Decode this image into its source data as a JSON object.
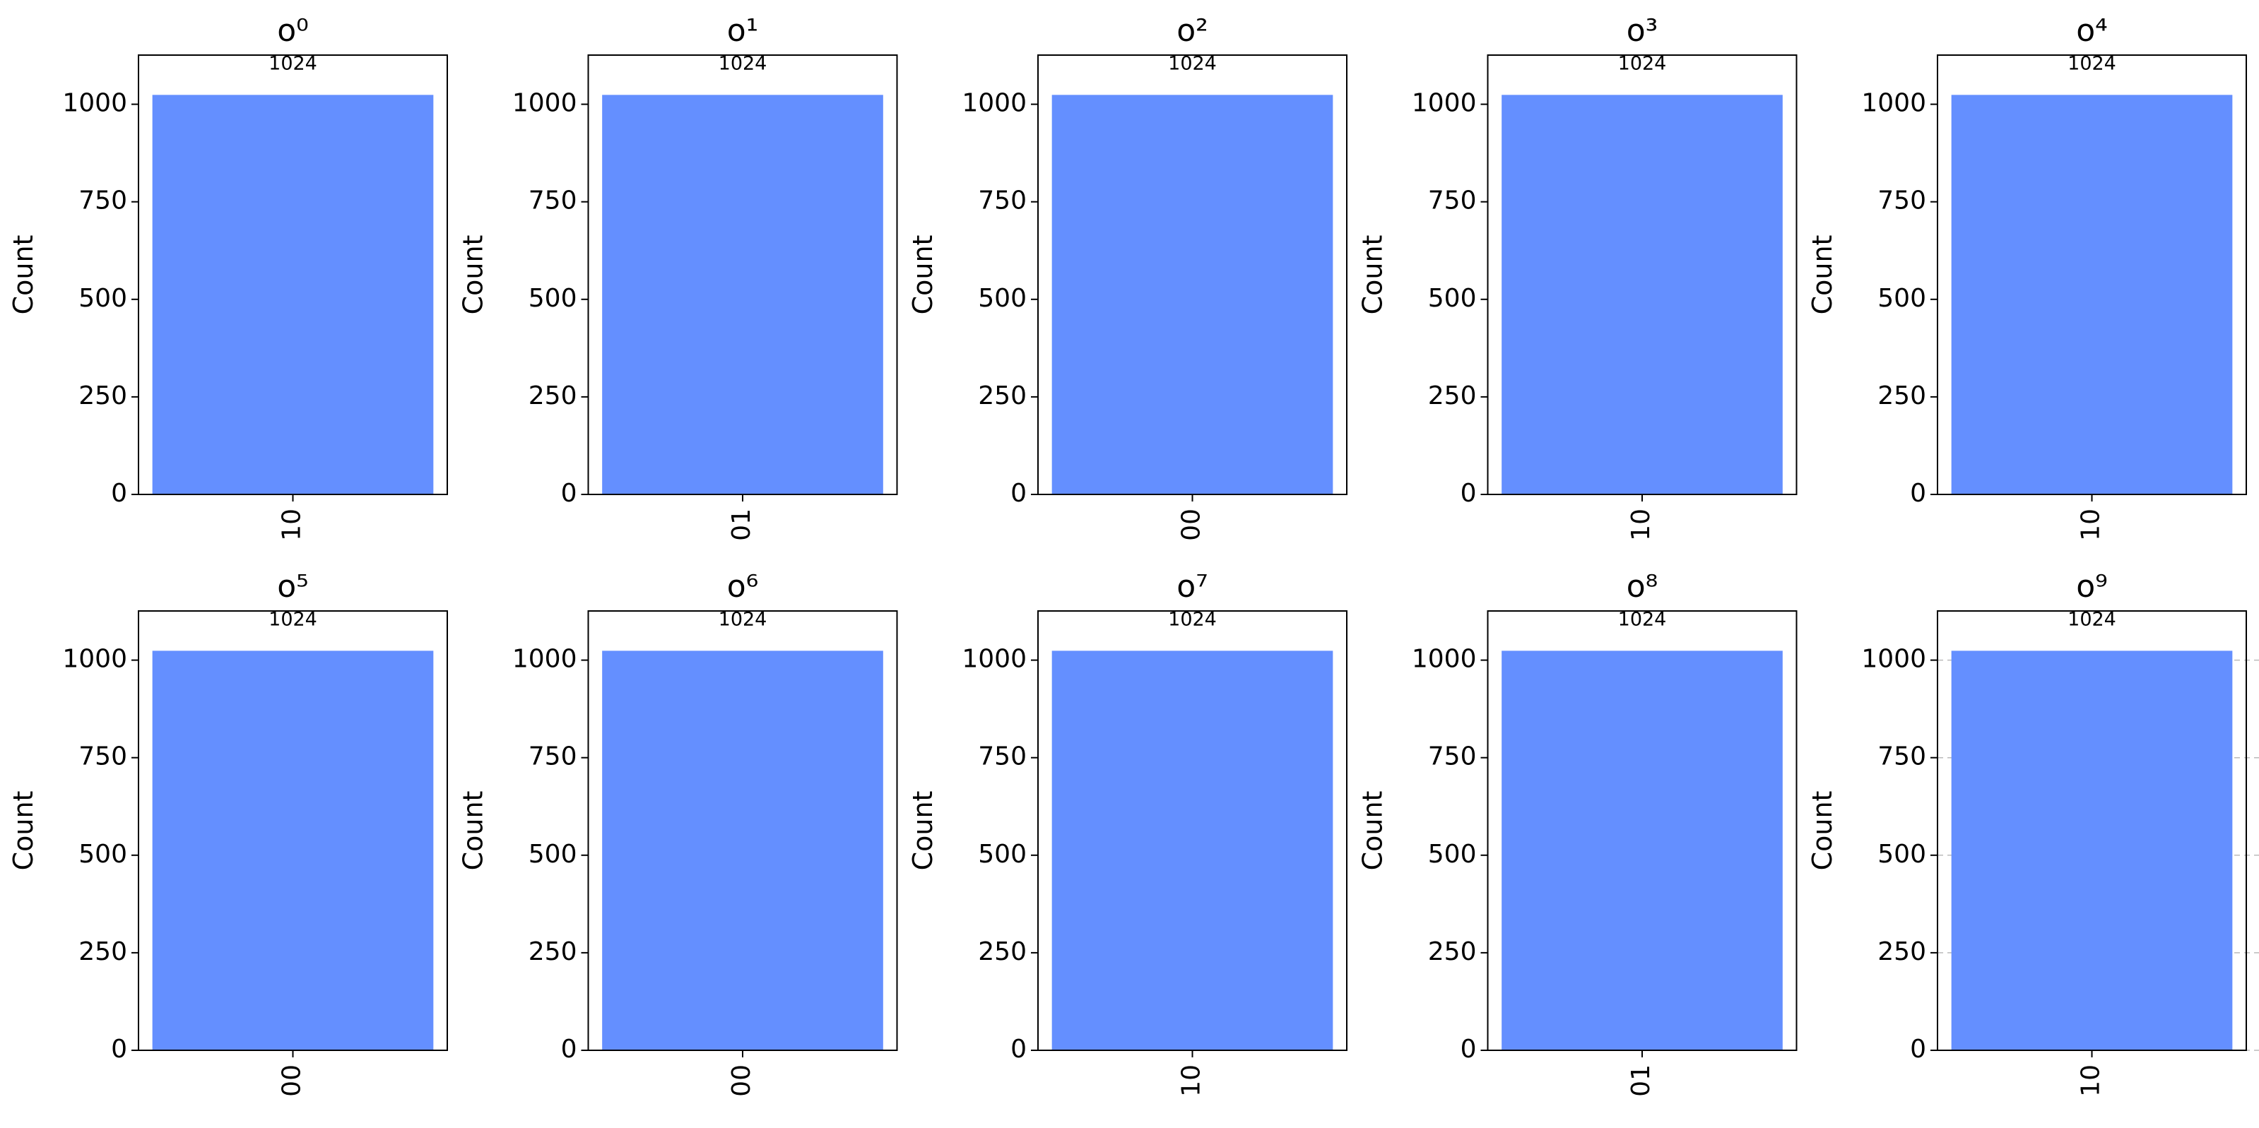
{
  "chart_data": [
    {
      "type": "bar",
      "title": "o⁰",
      "y_label": "Count",
      "categories": [
        "10"
      ],
      "values": [
        1024
      ],
      "color": "#648fff",
      "ylim": [
        0,
        1126
      ],
      "yticks": [
        0,
        250,
        500,
        750,
        1000
      ]
    },
    {
      "type": "bar",
      "title": "o¹",
      "y_label": "Count",
      "categories": [
        "01"
      ],
      "values": [
        1024
      ],
      "color": "#648fff",
      "ylim": [
        0,
        1126
      ],
      "yticks": [
        0,
        250,
        500,
        750,
        1000
      ]
    },
    {
      "type": "bar",
      "title": "o²",
      "y_label": "Count",
      "categories": [
        "00"
      ],
      "values": [
        1024
      ],
      "color": "#648fff",
      "ylim": [
        0,
        1126
      ],
      "yticks": [
        0,
        250,
        500,
        750,
        1000
      ]
    },
    {
      "type": "bar",
      "title": "o³",
      "y_label": "Count",
      "categories": [
        "10"
      ],
      "values": [
        1024
      ],
      "color": "#648fff",
      "ylim": [
        0,
        1126
      ],
      "yticks": [
        0,
        250,
        500,
        750,
        1000
      ]
    },
    {
      "type": "bar",
      "title": "o⁴",
      "y_label": "Count",
      "categories": [
        "10"
      ],
      "values": [
        1024
      ],
      "color": "#648fff",
      "ylim": [
        0,
        1126
      ],
      "yticks": [
        0,
        250,
        500,
        750,
        1000
      ]
    },
    {
      "type": "bar",
      "title": "o⁵",
      "y_label": "Count",
      "categories": [
        "00"
      ],
      "values": [
        1024
      ],
      "color": "#648fff",
      "ylim": [
        0,
        1126
      ],
      "yticks": [
        0,
        250,
        500,
        750,
        1000
      ]
    },
    {
      "type": "bar",
      "title": "o⁶",
      "y_label": "Count",
      "categories": [
        "00"
      ],
      "values": [
        1024
      ],
      "color": "#648fff",
      "ylim": [
        0,
        1126
      ],
      "yticks": [
        0,
        250,
        500,
        750,
        1000
      ]
    },
    {
      "type": "bar",
      "title": "o⁷",
      "y_label": "Count",
      "categories": [
        "10"
      ],
      "values": [
        1024
      ],
      "color": "#648fff",
      "ylim": [
        0,
        1126
      ],
      "yticks": [
        0,
        250,
        500,
        750,
        1000
      ]
    },
    {
      "type": "bar",
      "title": "o⁸",
      "y_label": "Count",
      "categories": [
        "01"
      ],
      "values": [
        1024
      ],
      "color": "#648fff",
      "ylim": [
        0,
        1126
      ],
      "yticks": [
        0,
        250,
        500,
        750,
        1000
      ]
    },
    {
      "type": "bar",
      "title": "o⁹",
      "y_label": "Count",
      "categories": [
        "10"
      ],
      "values": [
        1024
      ],
      "color": "#648fff",
      "ylim": [
        0,
        1126
      ],
      "yticks": [
        0,
        250,
        500,
        750,
        1000
      ],
      "grid": true
    }
  ]
}
